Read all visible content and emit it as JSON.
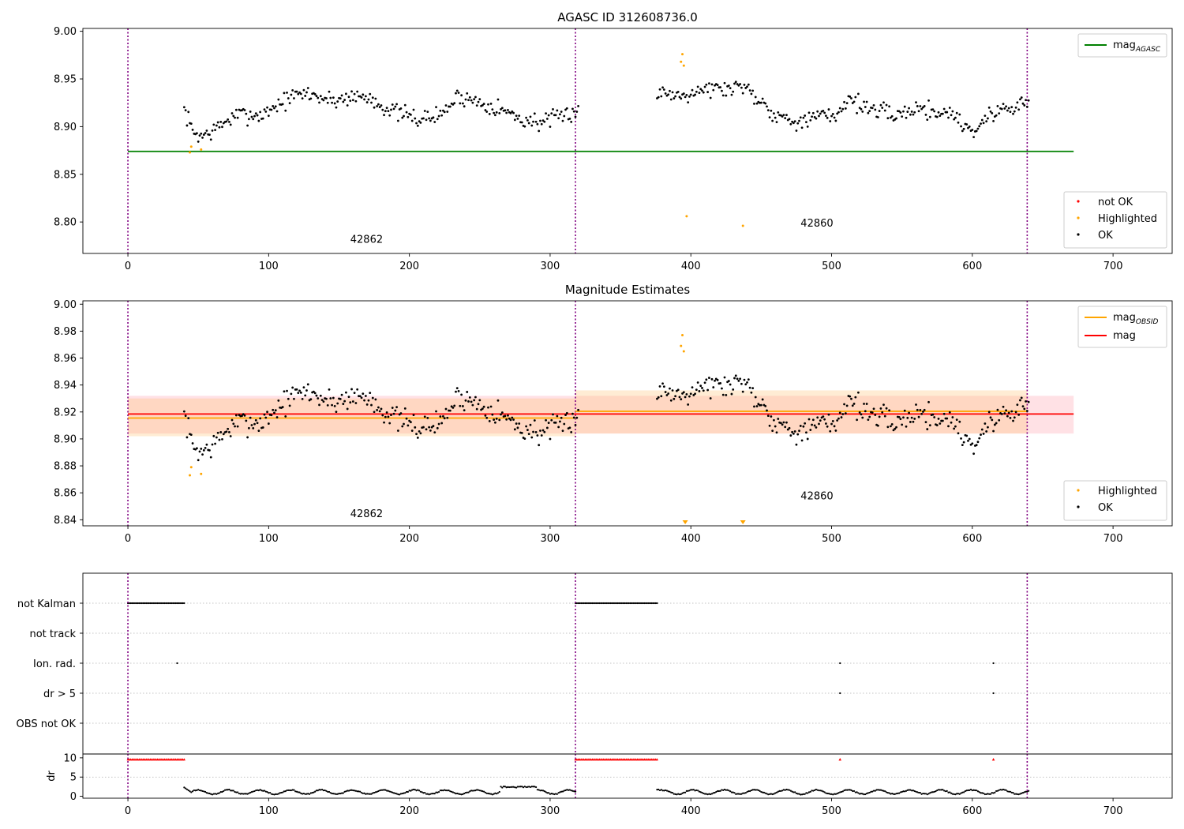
{
  "chart_data": [
    {
      "type": "scatter",
      "title": "AGASC ID 312608736.0",
      "xlim": [
        -32,
        742
      ],
      "ylim": [
        8.767,
        9.003
      ],
      "x_ticks": [
        0,
        100,
        200,
        300,
        400,
        500,
        600,
        700
      ],
      "y_ticks": [
        8.8,
        8.85,
        8.9,
        8.95,
        9.0
      ],
      "grid": false,
      "obsid_boundaries": [
        0,
        318,
        639
      ],
      "obsid_labels": [
        {
          "text": "42862",
          "x": 158,
          "y": 8.778
        },
        {
          "text": "42860",
          "x": 478,
          "y": 8.795
        }
      ],
      "hlines": [
        {
          "name": "mag_AGASC",
          "y": 8.874,
          "x_range": [
            0,
            672
          ],
          "color": "#008000"
        }
      ],
      "series": [
        {
          "name": "not OK",
          "color": "#ff0000",
          "points": []
        },
        {
          "name": "Highlighted",
          "color": "#ffa500",
          "points": [
            [
              44,
              8.873
            ],
            [
              45,
              8.879
            ],
            [
              52,
              8.876
            ],
            [
              393,
              8.968
            ],
            [
              394,
              8.976
            ],
            [
              395,
              8.964
            ],
            [
              397,
              8.806
            ],
            [
              437,
              8.796
            ]
          ]
        },
        {
          "name": "OK",
          "color": "#000000",
          "generated": {
            "segments": [
              {
                "x_range": [
                  40,
                  320
                ],
                "step": 1,
                "anchors": [
                  [
                    40,
                    8.918
                  ],
                  [
                    46,
                    8.895
                  ],
                  [
                    52,
                    8.89
                  ],
                  [
                    60,
                    8.895
                  ],
                  [
                    70,
                    8.906
                  ],
                  [
                    80,
                    8.913
                  ],
                  [
                    95,
                    8.912
                  ],
                  [
                    105,
                    8.922
                  ],
                  [
                    118,
                    8.932
                  ],
                  [
                    128,
                    8.935
                  ],
                  [
                    145,
                    8.927
                  ],
                  [
                    160,
                    8.932
                  ],
                  [
                    172,
                    8.93
                  ],
                  [
                    185,
                    8.918
                  ],
                  [
                    197,
                    8.912
                  ],
                  [
                    208,
                    8.908
                  ],
                  [
                    222,
                    8.912
                  ],
                  [
                    235,
                    8.932
                  ],
                  [
                    245,
                    8.928
                  ],
                  [
                    258,
                    8.922
                  ],
                  [
                    270,
                    8.915
                  ],
                  [
                    280,
                    8.907
                  ],
                  [
                    292,
                    8.905
                  ],
                  [
                    305,
                    8.908
                  ],
                  [
                    320,
                    8.918
                  ]
                ]
              },
              {
                "x_range": [
                  376,
                  640
                ],
                "step": 1,
                "anchors": [
                  [
                    376,
                    8.935
                  ],
                  [
                    385,
                    8.935
                  ],
                  [
                    392,
                    8.933
                  ],
                  [
                    400,
                    8.937
                  ],
                  [
                    410,
                    8.94
                  ],
                  [
                    420,
                    8.94
                  ],
                  [
                    430,
                    8.94
                  ],
                  [
                    438,
                    8.945
                  ],
                  [
                    445,
                    8.932
                  ],
                  [
                    452,
                    8.925
                  ],
                  [
                    460,
                    8.912
                  ],
                  [
                    470,
                    8.908
                  ],
                  [
                    482,
                    8.905
                  ],
                  [
                    492,
                    8.912
                  ],
                  [
                    502,
                    8.91
                  ],
                  [
                    512,
                    8.93
                  ],
                  [
                    525,
                    8.92
                  ],
                  [
                    535,
                    8.915
                  ],
                  [
                    548,
                    8.912
                  ],
                  [
                    560,
                    8.92
                  ],
                  [
                    575,
                    8.915
                  ],
                  [
                    585,
                    8.915
                  ],
                  [
                    595,
                    8.9
                  ],
                  [
                    602,
                    8.896
                  ],
                  [
                    612,
                    8.912
                  ],
                  [
                    625,
                    8.92
                  ],
                  [
                    640,
                    8.925
                  ]
                ]
              }
            ],
            "noise": 0.0045,
            "seed": 7
          }
        }
      ],
      "legend_upper": {
        "placement": "upper-right",
        "items": [
          {
            "label": "mag",
            "sub": "AGASC",
            "color": "#008000"
          }
        ]
      },
      "legend_lower": {
        "placement": "lower-right",
        "items": [
          {
            "label": "not OK",
            "color": "#ff0000"
          },
          {
            "label": "Highlighted",
            "color": "#ffa500"
          },
          {
            "label": "OK",
            "color": "#000000"
          }
        ]
      }
    },
    {
      "type": "scatter",
      "title": "Magnitude Estimates",
      "xlim": [
        -32,
        742
      ],
      "ylim": [
        8.8355,
        9.0025
      ],
      "x_ticks": [
        0,
        100,
        200,
        300,
        400,
        500,
        600,
        700
      ],
      "y_ticks": [
        8.84,
        8.86,
        8.88,
        8.9,
        8.92,
        8.94,
        8.96,
        8.98,
        9.0
      ],
      "grid": false,
      "obsid_boundaries": [
        0,
        318,
        639
      ],
      "obsid_labels": [
        {
          "text": "42862",
          "x": 158,
          "y": 8.842
        },
        {
          "text": "42860",
          "x": 478,
          "y": 8.855
        }
      ],
      "bands": [
        {
          "name": "mag band",
          "x_range": [
            0,
            672
          ],
          "y_range": [
            8.904,
            8.932
          ],
          "color": "#ff9aa8",
          "opacity": 0.3
        },
        {
          "name": "mag_OBSID 42862 band",
          "x_range": [
            0,
            318
          ],
          "y_range": [
            8.902,
            8.93
          ],
          "color": "#ffc070",
          "opacity": 0.3
        },
        {
          "name": "mag_OBSID 42860 band",
          "x_range": [
            318,
            639
          ],
          "y_range": [
            8.904,
            8.936
          ],
          "color": "#ffc070",
          "opacity": 0.3
        }
      ],
      "hlines": [
        {
          "name": "mag_OBSID",
          "y": 8.9155,
          "x_range": [
            0,
            318
          ],
          "color": "#ffa500"
        },
        {
          "name": "mag_OBSID",
          "y": 8.9205,
          "x_range": [
            318,
            639
          ],
          "color": "#ffa500"
        },
        {
          "name": "mag",
          "y": 8.9185,
          "x_range": [
            0,
            672
          ],
          "color": "#ff0000"
        }
      ],
      "off_scale_markers": [
        {
          "x": 396,
          "color": "#ffa500"
        },
        {
          "x": 437,
          "color": "#ffa500"
        }
      ],
      "series": [
        {
          "name": "Highlighted",
          "color": "#ffa500",
          "points": [
            [
              44,
              8.873
            ],
            [
              45,
              8.879
            ],
            [
              52,
              8.874
            ],
            [
              393,
              8.969
            ],
            [
              394,
              8.977
            ],
            [
              395,
              8.965
            ]
          ]
        },
        {
          "name": "OK",
          "color": "#000000",
          "generated_from": 0
        }
      ],
      "legend_upper": {
        "placement": "upper-right",
        "items": [
          {
            "label": "mag",
            "sub": "OBSID",
            "color": "#ffa500"
          },
          {
            "label": "mag",
            "color": "#ff0000"
          }
        ]
      },
      "legend_lower": {
        "placement": "lower-right",
        "items": [
          {
            "label": "Highlighted",
            "color": "#ffa500"
          },
          {
            "label": "OK",
            "color": "#000000"
          }
        ]
      }
    },
    {
      "type": "scatter",
      "xlim": [
        -32,
        742
      ],
      "x_ticks": [
        0,
        100,
        200,
        300,
        400,
        500,
        600,
        700
      ],
      "obsid_boundaries": [
        0,
        318,
        639
      ],
      "flag_rows": [
        "not Kalman",
        "not track",
        "Ion. rad.",
        "dr > 5",
        "OBS not OK"
      ],
      "flags": {
        "not Kalman": {
          "ranges": [
            [
              0,
              40
            ],
            [
              318,
              376
            ]
          ],
          "step": 1
        },
        "not track": {
          "ranges": [],
          "step": 1
        },
        "Ion. rad.": {
          "points": [
            35,
            506,
            615
          ]
        },
        "dr > 5": {
          "points": [
            506,
            615
          ]
        },
        "OBS not OK": {
          "points": []
        }
      },
      "dr_panel": {
        "ylabel": "dr",
        "ylim": [
          -0.5,
          11
        ],
        "y_ticks": [
          0,
          5,
          10
        ],
        "clipped_value": 9.6,
        "clipped_ranges": [
          [
            0,
            40
          ],
          [
            318,
            376
          ]
        ],
        "clipped_points": [
          506,
          615
        ],
        "clipped_color": "#ff0000",
        "values_color": "#000000",
        "values_generated": {
          "segments": [
            {
              "x_range": [
                40,
                318
              ],
              "step": 1
            },
            {
              "x_range": [
                376,
                640
              ],
              "step": 1
            }
          ],
          "base": 1.1,
          "amplitude": 0.55,
          "period": 22,
          "jumps": [
            [
              40,
              2.3
            ],
            [
              265,
              2.4
            ],
            [
              290,
              1.0
            ],
            [
              378,
              1.6
            ]
          ]
        }
      }
    }
  ]
}
